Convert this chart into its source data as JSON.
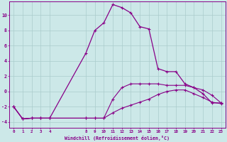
{
  "xlabel": "Windchill (Refroidissement éolien,°C)",
  "bg_color": "#cce8e8",
  "line_color": "#880088",
  "grid_color": "#aacccc",
  "xtick_positions": [
    0,
    1,
    2,
    3,
    4,
    8,
    9,
    10,
    11,
    12,
    13,
    14,
    15,
    16,
    17,
    18,
    19,
    20,
    21,
    22,
    23
  ],
  "xtick_labels": [
    "0",
    "1",
    "2",
    "3",
    "4",
    "8",
    "9",
    "10",
    "11",
    "12",
    "13",
    "14",
    "15",
    "16",
    "17",
    "18",
    "19",
    "20",
    "21",
    "22",
    "23"
  ],
  "ytick_positions": [
    -4,
    -2,
    0,
    2,
    4,
    6,
    8,
    10
  ],
  "ytick_labels": [
    "-4",
    "-2",
    "0",
    "2",
    "4",
    "6",
    "8",
    "10"
  ],
  "xlim": [
    -0.5,
    23.5
  ],
  "ylim": [
    -4.8,
    11.8
  ],
  "series1_x": [
    0,
    1,
    2,
    3,
    4,
    8,
    9,
    10,
    11,
    12,
    13,
    14,
    15,
    16,
    17,
    18,
    19,
    20,
    21,
    22,
    23
  ],
  "series1_y": [
    -2.0,
    -3.6,
    -3.5,
    -3.5,
    -3.5,
    -3.5,
    -3.5,
    -3.5,
    -1.0,
    0.5,
    1.0,
    1.0,
    1.0,
    1.0,
    0.8,
    0.8,
    0.8,
    0.5,
    0.2,
    -0.5,
    -1.5
  ],
  "series2_x": [
    0,
    1,
    2,
    3,
    4,
    8,
    9,
    10,
    11,
    12,
    13,
    14,
    15,
    16,
    17,
    18,
    19,
    20,
    21,
    22,
    23
  ],
  "series2_y": [
    -2.0,
    -3.6,
    -3.5,
    -3.5,
    -3.5,
    -3.5,
    -3.5,
    -3.5,
    -2.8,
    -2.2,
    -1.8,
    -1.4,
    -1.0,
    -0.4,
    0.0,
    0.2,
    0.2,
    -0.3,
    -0.8,
    -1.4,
    -1.6
  ],
  "series3_x": [
    0,
    1,
    2,
    3,
    4,
    8,
    9,
    10,
    11,
    12,
    13,
    14,
    15,
    16,
    17,
    18,
    19,
    20,
    21,
    22,
    23
  ],
  "series3_y": [
    -2.0,
    -3.6,
    -3.5,
    -3.5,
    -3.5,
    5.0,
    8.0,
    9.0,
    11.4,
    11.0,
    10.3,
    8.5,
    8.2,
    3.0,
    2.6,
    2.6,
    1.0,
    0.5,
    -0.3,
    -1.5,
    -1.5
  ]
}
